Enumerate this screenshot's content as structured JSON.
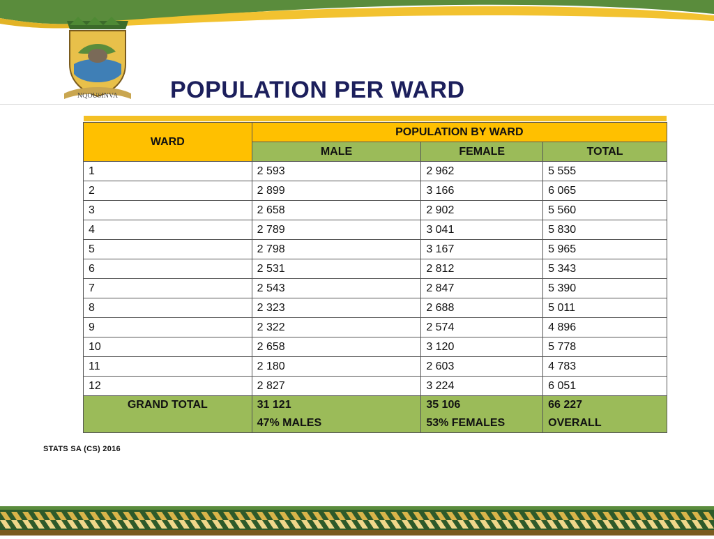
{
  "header": {
    "title": "POPULATION PER WARD",
    "logo_text": "NQOUSINVA"
  },
  "table": {
    "ward_header": "WARD",
    "group_header": "POPULATION BY WARD",
    "columns": [
      "MALE",
      "FEMALE",
      "TOTAL"
    ],
    "rows": [
      [
        "1",
        "2 593",
        "2 962",
        "5 555"
      ],
      [
        "2",
        "2 899",
        "3 166",
        "6 065"
      ],
      [
        "3",
        "2 658",
        "2 902",
        "5 560"
      ],
      [
        "4",
        "2 789",
        "3 041",
        "5 830"
      ],
      [
        "5",
        "2 798",
        "3 167",
        "5 965"
      ],
      [
        "6",
        "2 531",
        "2 812",
        "5 343"
      ],
      [
        "7",
        "2 543",
        "2 847",
        "5 390"
      ],
      [
        "8",
        "2 323",
        "2 688",
        "5 011"
      ],
      [
        "9",
        "2 322",
        "2 574",
        "4 896"
      ],
      [
        "10",
        "2 658",
        "3 120",
        "5 778"
      ],
      [
        "11",
        "2 180",
        "2 603",
        "4 783"
      ],
      [
        "12",
        "2 827",
        "3 224",
        "6 051"
      ]
    ],
    "grand_total": {
      "label": "GRAND TOTAL",
      "male": "31 121",
      "male_note": "47% MALES",
      "female": "35 106",
      "female_note": "53% FEMALES",
      "total": "66 227",
      "total_note": "OVERALL"
    }
  },
  "footer": {
    "source": "STATS SA (CS) 2016"
  },
  "colors": {
    "header_gold": "#ffc000",
    "header_green": "#9bbb59",
    "title_navy": "#1c1f5c"
  }
}
